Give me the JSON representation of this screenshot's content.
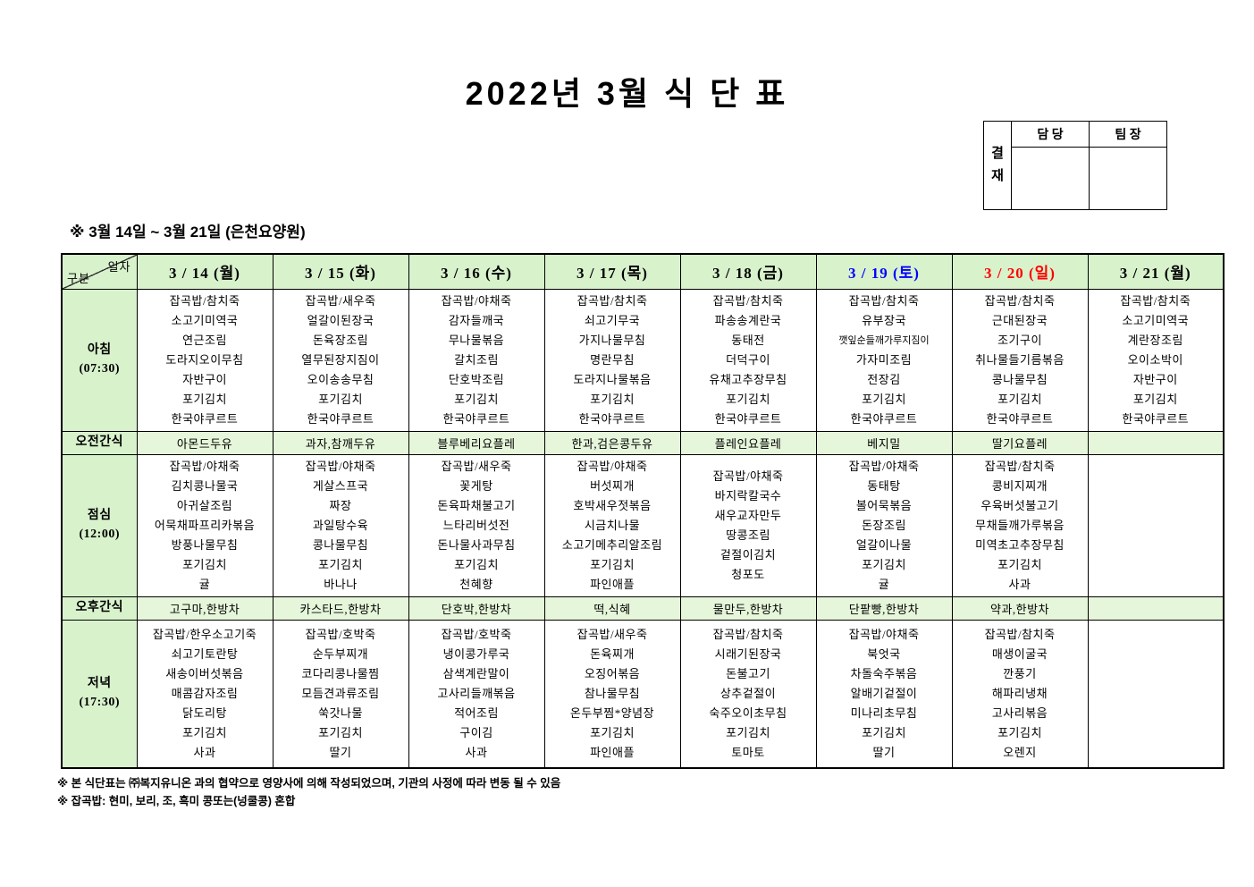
{
  "title": "2022년 3월 식 단 표",
  "approval": {
    "stamp_label": "결\n재",
    "columns": [
      "담 당",
      "팀 장"
    ]
  },
  "subtitle": "※ 3월 14일 ~ 3월 21일 (은천요양원)",
  "table": {
    "corner": {
      "top_right": "일자",
      "bottom_left": "구분"
    },
    "date_headers": [
      {
        "label": "3 / 14 (월)",
        "color": "#000000"
      },
      {
        "label": "3 / 15 (화)",
        "color": "#000000"
      },
      {
        "label": "3 / 16 (수)",
        "color": "#000000"
      },
      {
        "label": "3 / 17 (목)",
        "color": "#000000"
      },
      {
        "label": "3 / 18 (금)",
        "color": "#000000"
      },
      {
        "label": "3 / 19 (토)",
        "color": "#0000ff"
      },
      {
        "label": "3 / 20 (일)",
        "color": "#ff0000"
      },
      {
        "label": "3 / 21 (월)",
        "color": "#000000"
      }
    ],
    "rows": [
      {
        "label": "아침\n(07:30)",
        "kind": "meal",
        "cells": [
          [
            "잡곡밥/참치죽",
            "소고기미역국",
            "연근조림",
            "도라지오이무침",
            "자반구이",
            "포기김치",
            "한국야쿠르트"
          ],
          [
            "잡곡밥/새우죽",
            "얼갈이된장국",
            "돈육장조림",
            "열무된장지짐이",
            "오이송송무침",
            "포기김치",
            "한국야쿠르트"
          ],
          [
            "잡곡밥/야채죽",
            "감자들깨국",
            "무나물볶음",
            "갈치조림",
            "단호박조림",
            "포기김치",
            "한국야쿠르트"
          ],
          [
            "잡곡밥/참치죽",
            "쇠고기무국",
            "가지나물무침",
            "명란무침",
            "도라지나물볶음",
            "포기김치",
            "한국야쿠르트"
          ],
          [
            "잡곡밥/참치죽",
            "파송송계란국",
            "동태전",
            "더덕구이",
            "유채고추장무침",
            "포기김치",
            "한국야쿠르트"
          ],
          [
            "잡곡밥/참치죽",
            "유부장국",
            "깻잎순들깨가루지짐이",
            "가자미조림",
            "전장김",
            "포기김치",
            "한국야쿠르트"
          ],
          [
            "잡곡밥/참치죽",
            "근대된장국",
            "조기구이",
            "취나물들기름볶음",
            "콩나물무침",
            "포기김치",
            "한국야쿠르트"
          ],
          [
            "잡곡밥/참치죽",
            "소고기미역국",
            "계란장조림",
            "오이소박이",
            "자반구이",
            "포기김치",
            "한국야쿠르트"
          ]
        ]
      },
      {
        "label": "오전간식",
        "kind": "snack",
        "cells": [
          "아몬드두유",
          "과자,참깨두유",
          "블루베리요플레",
          "한과,검은콩두유",
          "플레인요플레",
          "베지밀",
          "딸기요플레",
          ""
        ]
      },
      {
        "label": "점심\n(12:00)",
        "kind": "meal",
        "cells": [
          [
            "잡곡밥/야채죽",
            "김치콩나물국",
            "아귀살조림",
            "어묵채파프리카볶음",
            "방풍나물무침",
            "포기김치",
            "귤"
          ],
          [
            "잡곡밥/야채죽",
            "게살스프국",
            "짜장",
            "과일탕수육",
            "콩나물무침",
            "포기김치",
            "바나나"
          ],
          [
            "잡곡밥/새우죽",
            "꽃게탕",
            "돈육파채불고기",
            "느타리버섯전",
            "돈나물사과무침",
            "포기김치",
            "천혜향"
          ],
          [
            "잡곡밥/야채죽",
            "버섯찌개",
            "호박새우젓볶음",
            "시금치나물",
            "소고기메추리알조림",
            "포기김치",
            "파인애플"
          ],
          [
            "잡곡밥/야채죽",
            "바지락칼국수",
            "새우교자만두",
            "땅콩조림",
            "겉절이김치",
            "청포도"
          ],
          [
            "잡곡밥/야채죽",
            "동태탕",
            "볼어묵볶음",
            "돈장조림",
            "얼갈이나물",
            "포기김치",
            "귤"
          ],
          [
            "잡곡밥/참치죽",
            "콩비지찌개",
            "우육버섯불고기",
            "무채들깨가루볶음",
            "미역초고추장무침",
            "포기김치",
            "사과"
          ],
          []
        ]
      },
      {
        "label": "오후간식",
        "kind": "snack",
        "cells": [
          "고구마,한방차",
          "카스타드,한방차",
          "단호박,한방차",
          "떡,식혜",
          "물만두,한방차",
          "단팥빵,한방차",
          "약과,한방차",
          ""
        ]
      },
      {
        "label": "저녁\n(17:30)",
        "kind": "meal",
        "cells": [
          [
            "잡곡밥/한우소고기죽",
            "쇠고기토란탕",
            "새송이버섯볶음",
            "매콤감자조림",
            "닭도리탕",
            "포기김치",
            "사과"
          ],
          [
            "잡곡밥/호박죽",
            "순두부찌개",
            "코다리콩나물찜",
            "모듬견과류조림",
            "쑥갓나물",
            "포기김치",
            "딸기"
          ],
          [
            "잡곡밥/호박죽",
            "냉이콩가루국",
            "삼색계란말이",
            "고사리들깨볶음",
            "적어조림",
            "구이김",
            "사과"
          ],
          [
            "잡곡밥/새우죽",
            "돈육찌개",
            "오징어볶음",
            "참나물무침",
            "온두부찜*양념장",
            "포기김치",
            "파인애플"
          ],
          [
            "잡곡밥/참치죽",
            "시래기된장국",
            "돈불고기",
            "상추겉절이",
            "숙주오이초무침",
            "포기김치",
            "토마토"
          ],
          [
            "잡곡밥/야채죽",
            "북엇국",
            "차돌숙주볶음",
            "알배기겉절이",
            "미나리초무침",
            "포기김치",
            "딸기"
          ],
          [
            "잡곡밥/참치죽",
            "매생이굴국",
            "깐풍기",
            "해파리냉채",
            "고사리볶음",
            "포기김치",
            "오렌지"
          ],
          []
        ]
      }
    ]
  },
  "footnotes": [
    "※ 본 식단표는 ㈜복지유니온 과의 협약으로 영양사에 의해 작성되었으며, 기관의 사정에 따라 변동 될 수 있음",
    "※ 잡곡밥: 현미, 보리, 조, 흑미 콩또는(넝쿨콩) 혼합"
  ]
}
